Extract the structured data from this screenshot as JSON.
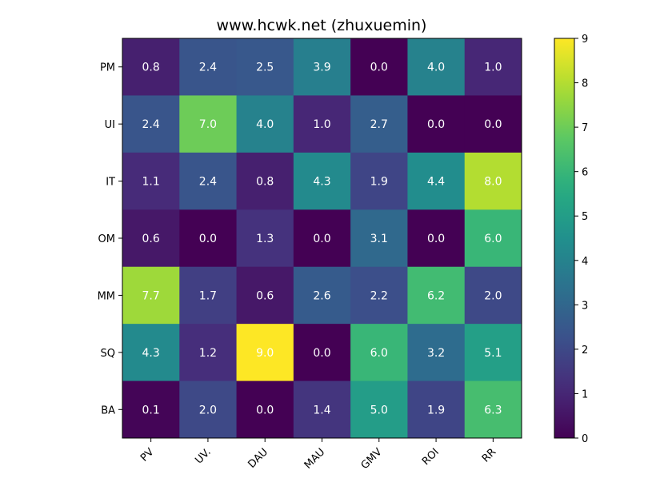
{
  "chart_data": {
    "type": "heatmap",
    "title": "www.hcwk.net (zhuxuemin)",
    "x_categories": [
      "PV",
      "UV.",
      "DAU",
      "MAU",
      "GMV",
      "ROI",
      "RR"
    ],
    "y_categories": [
      "PM",
      "UI",
      "IT",
      "OM",
      "MM",
      "SQ",
      "BA"
    ],
    "values": [
      [
        0.8,
        2.4,
        2.5,
        3.9,
        0.0,
        4.0,
        1.0
      ],
      [
        2.4,
        7.0,
        4.0,
        1.0,
        2.7,
        0.0,
        0.0
      ],
      [
        1.1,
        2.4,
        0.8,
        4.3,
        1.9,
        4.4,
        8.0
      ],
      [
        0.6,
        0.0,
        1.3,
        0.0,
        3.1,
        0.0,
        6.0
      ],
      [
        7.7,
        1.7,
        0.6,
        2.6,
        2.2,
        6.2,
        2.0
      ],
      [
        4.3,
        1.2,
        9.0,
        0.0,
        6.0,
        3.2,
        5.1
      ],
      [
        0.1,
        2.0,
        0.0,
        1.4,
        5.0,
        1.9,
        6.3
      ]
    ],
    "colormap": "viridis",
    "vmin": 0,
    "vmax": 9,
    "colorbar_ticks": [
      "0",
      "1",
      "2",
      "3",
      "4",
      "5",
      "6",
      "7",
      "8",
      "9"
    ],
    "annotation_color": "#ffffff",
    "x_tick_rotation_deg": -45,
    "grid": false
  }
}
